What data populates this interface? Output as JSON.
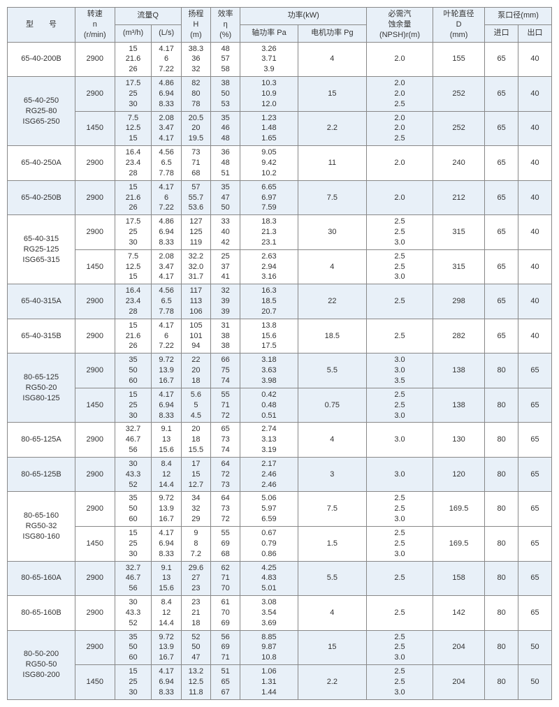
{
  "headers": {
    "model": "型　　号",
    "speed": "转速\nn\n(r/min)",
    "flow": "流量Q",
    "flow_m3h": "(m³/h)",
    "flow_ls": "(L/s)",
    "head": "扬程\nH\n(m)",
    "eff": "效率\nη\n(%)",
    "power": "功率(kW)",
    "power_pa": "轴功率 Pa",
    "power_pg": "电机功率 Pg",
    "npsh": "必需汽\n蚀余量\n(NPSH)r(m)",
    "impeller": "叶轮直径\nD\n(mm)",
    "port": "泵口径(mm)",
    "port_in": "进口",
    "port_out": "出口"
  },
  "rows": [
    {
      "model": "65-40-200B",
      "speed": "2900",
      "q_m3h": "15\n21.6\n26",
      "q_ls": "4.17\n6\n7.22",
      "head": "38.3\n36\n32",
      "eff": "48\n57\n58",
      "pa": "3.26\n3.71\n3.9",
      "pg": "4",
      "npsh": "2.0",
      "d": "155",
      "in": "65",
      "out": "40",
      "bg": "#fff"
    },
    {
      "model": "65-40-250\nRG25-80\nISG65-250",
      "rowspan": 2,
      "speed": "2900",
      "q_m3h": "17.5\n25\n30",
      "q_ls": "4.86\n6.94\n8.33",
      "head": "82\n80\n78",
      "eff": "38\n50\n53",
      "pa": "10.3\n10.9\n12.0",
      "pg": "15",
      "npsh": "2.0\n2.0\n2.5",
      "d": "252",
      "in": "65",
      "out": "40",
      "bg": "#e8f0f8"
    },
    {
      "speed": "1450",
      "q_m3h": "7.5\n12.5\n15",
      "q_ls": "2.08\n3.47\n4.17",
      "head": "20.5\n20\n19.5",
      "eff": "35\n46\n48",
      "pa": "1.23\n1.48\n1.65",
      "pg": "2.2",
      "npsh": "2.0\n2.0\n2.5",
      "d": "252",
      "in": "65",
      "out": "40",
      "bg": "#e8f0f8"
    },
    {
      "model": "65-40-250A",
      "speed": "2900",
      "q_m3h": "16.4\n23.4\n28",
      "q_ls": "4.56\n6.5\n7.78",
      "head": "73\n71\n68",
      "eff": "36\n48\n51",
      "pa": "9.05\n9.42\n10.2",
      "pg": "11",
      "npsh": "2.0",
      "d": "240",
      "in": "65",
      "out": "40",
      "bg": "#fff"
    },
    {
      "model": "65-40-250B",
      "speed": "2900",
      "q_m3h": "15\n21.6\n26",
      "q_ls": "4.17\n6\n7.22",
      "head": "57\n55.7\n53.6",
      "eff": "35\n47\n50",
      "pa": "6.65\n6.97\n7.59",
      "pg": "7.5",
      "npsh": "2.0",
      "d": "212",
      "in": "65",
      "out": "40",
      "bg": "#e8f0f8"
    },
    {
      "model": "65-40-315\nRG25-125\nISG65-315",
      "rowspan": 2,
      "speed": "2900",
      "q_m3h": "17.5\n25\n30",
      "q_ls": "4.86\n6.94\n8.33",
      "head": "127\n125\n119",
      "eff": "33\n40\n42",
      "pa": "18.3\n21.3\n23.1",
      "pg": "30",
      "npsh": "2.5\n2.5\n3.0",
      "d": "315",
      "in": "65",
      "out": "40",
      "bg": "#fff"
    },
    {
      "speed": "1450",
      "q_m3h": "7.5\n12.5\n15",
      "q_ls": "2.08\n3.47\n4.17",
      "head": "32.2\n32.0\n31.7",
      "eff": "25\n37\n41",
      "pa": "2.63\n2.94\n3.16",
      "pg": "4",
      "npsh": "2.5\n2.5\n3.0",
      "d": "315",
      "in": "65",
      "out": "40",
      "bg": "#fff"
    },
    {
      "model": "65-40-315A",
      "speed": "2900",
      "q_m3h": "16.4\n23.4\n28",
      "q_ls": "4.56\n6.5\n7.78",
      "head": "117\n113\n106",
      "eff": "32\n39\n39",
      "pa": "16.3\n18.5\n20.7",
      "pg": "22",
      "npsh": "2.5",
      "d": "298",
      "in": "65",
      "out": "40",
      "bg": "#e8f0f8"
    },
    {
      "model": "65-40-315B",
      "speed": "2900",
      "q_m3h": "15\n21.6\n26",
      "q_ls": "4.17\n6\n7.22",
      "head": "105\n101\n94",
      "eff": "31\n38\n38",
      "pa": "13.8\n15.6\n17.5",
      "pg": "18.5",
      "npsh": "2.5",
      "d": "282",
      "in": "65",
      "out": "40",
      "bg": "#fff"
    },
    {
      "model": "80-65-125\nRG50-20\nISG80-125",
      "rowspan": 2,
      "speed": "2900",
      "q_m3h": "35\n50\n60",
      "q_ls": "9.72\n13.9\n16.7",
      "head": "22\n20\n18",
      "eff": "66\n75\n74",
      "pa": "3.18\n3.63\n3.98",
      "pg": "5.5",
      "npsh": "3.0\n3.0\n3.5",
      "d": "138",
      "in": "80",
      "out": "65",
      "bg": "#e8f0f8"
    },
    {
      "speed": "1450",
      "q_m3h": "15\n25\n30",
      "q_ls": "4.17\n6.94\n8.33",
      "head": "5.6\n5\n4.5",
      "eff": "55\n71\n72",
      "pa": "0.42\n0.48\n0.51",
      "pg": "0.75",
      "npsh": "2.5\n2.5\n3.0",
      "d": "138",
      "in": "80",
      "out": "65",
      "bg": "#e8f0f8"
    },
    {
      "model": "80-65-125A",
      "speed": "2900",
      "q_m3h": "32.7\n46.7\n56",
      "q_ls": "9.1\n13\n15.6",
      "head": "20\n18\n15.5",
      "eff": "65\n73\n74",
      "pa": "2.74\n3.13\n3.19",
      "pg": "4",
      "npsh": "3.0",
      "d": "130",
      "in": "80",
      "out": "65",
      "bg": "#fff"
    },
    {
      "model": "80-65-125B",
      "speed": "2900",
      "q_m3h": "30\n43.3\n52",
      "q_ls": "8.4\n12\n14.4",
      "head": "17\n15\n12.7",
      "eff": "64\n72\n73",
      "pa": "2.17\n2.46\n2.46",
      "pg": "3",
      "npsh": "3.0",
      "d": "120",
      "in": "80",
      "out": "65",
      "bg": "#e8f0f8"
    },
    {
      "model": "80-65-160\nRG50-32\nISG80-160",
      "rowspan": 2,
      "speed": "2900",
      "q_m3h": "35\n50\n60",
      "q_ls": "9.72\n13.9\n16.7",
      "head": "34\n32\n29",
      "eff": "64\n73\n72",
      "pa": "5.06\n5.97\n6.59",
      "pg": "7.5",
      "npsh": "2.5\n2.5\n3.0",
      "d": "169.5",
      "in": "80",
      "out": "65",
      "bg": "#fff"
    },
    {
      "speed": "1450",
      "q_m3h": "15\n25\n30",
      "q_ls": "4.17\n6.94\n8.33",
      "head": "9\n8\n7.2",
      "eff": "55\n69\n68",
      "pa": "0.67\n0.79\n0.86",
      "pg": "1.5",
      "npsh": "2.5\n2.5\n3.0",
      "d": "169.5",
      "in": "80",
      "out": "65",
      "bg": "#fff"
    },
    {
      "model": "80-65-160A",
      "speed": "2900",
      "q_m3h": "32.7\n46.7\n56",
      "q_ls": "9.1\n13\n15.6",
      "head": "29.6\n27\n23",
      "eff": "62\n71\n70",
      "pa": "4.25\n4.83\n5.01",
      "pg": "5.5",
      "npsh": "2.5",
      "d": "158",
      "in": "80",
      "out": "65",
      "bg": "#e8f0f8"
    },
    {
      "model": "80-65-160B",
      "speed": "2900",
      "q_m3h": "30\n43.3\n52",
      "q_ls": "8.4\n12\n14.4",
      "head": "23\n21\n18",
      "eff": "61\n70\n69",
      "pa": "3.08\n3.54\n3.69",
      "pg": "4",
      "npsh": "2.5",
      "d": "142",
      "in": "80",
      "out": "65",
      "bg": "#fff"
    },
    {
      "model": "80-50-200\nRG50-50\nISG80-200",
      "rowspan": 2,
      "speed": "2900",
      "q_m3h": "35\n50\n60",
      "q_ls": "9.72\n13.9\n16.7",
      "head": "52\n50\n47",
      "eff": "56\n69\n71",
      "pa": "8.85\n9.87\n10.8",
      "pg": "15",
      "npsh": "2.5\n2.5\n3.0",
      "d": "204",
      "in": "80",
      "out": "50",
      "bg": "#e8f0f8"
    },
    {
      "speed": "1450",
      "q_m3h": "15\n25\n30",
      "q_ls": "4.17\n6.94\n8.33",
      "head": "13.2\n12.5\n11.8",
      "eff": "51\n65\n67",
      "pa": "1.06\n1.31\n1.44",
      "pg": "2.2",
      "npsh": "2.5\n2.5\n3.0",
      "d": "204",
      "in": "80",
      "out": "50",
      "bg": "#e8f0f8"
    }
  ]
}
